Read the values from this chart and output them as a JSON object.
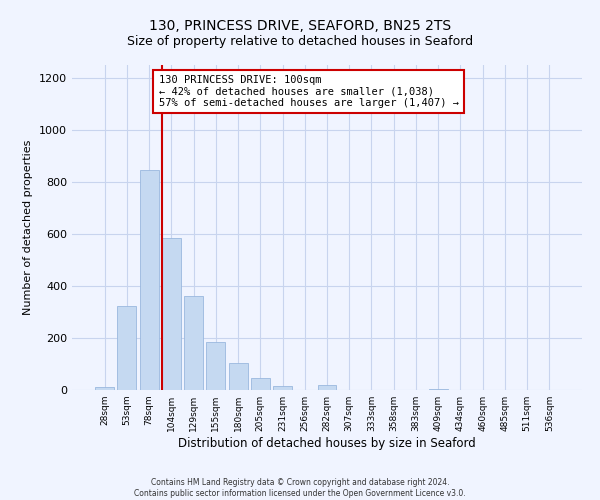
{
  "title": "130, PRINCESS DRIVE, SEAFORD, BN25 2TS",
  "subtitle": "Size of property relative to detached houses in Seaford",
  "xlabel": "Distribution of detached houses by size in Seaford",
  "ylabel": "Number of detached properties",
  "bin_labels": [
    "28sqm",
    "53sqm",
    "78sqm",
    "104sqm",
    "129sqm",
    "155sqm",
    "180sqm",
    "205sqm",
    "231sqm",
    "256sqm",
    "282sqm",
    "307sqm",
    "333sqm",
    "358sqm",
    "383sqm",
    "409sqm",
    "434sqm",
    "460sqm",
    "485sqm",
    "511sqm",
    "536sqm"
  ],
  "bar_values": [
    12,
    325,
    845,
    585,
    360,
    185,
    105,
    48,
    15,
    0,
    18,
    0,
    0,
    0,
    0,
    5,
    0,
    0,
    0,
    0,
    0
  ],
  "bar_color": "#c5d9f1",
  "bar_edge_color": "#9ab8de",
  "vline_color": "#cc0000",
  "annotation_text": "130 PRINCESS DRIVE: 100sqm\n← 42% of detached houses are smaller (1,038)\n57% of semi-detached houses are larger (1,407) →",
  "annotation_box_color": "#ffffff",
  "annotation_box_edge": "#cc0000",
  "ylim": [
    0,
    1250
  ],
  "yticks": [
    0,
    200,
    400,
    600,
    800,
    1000,
    1200
  ],
  "footer_line1": "Contains HM Land Registry data © Crown copyright and database right 2024.",
  "footer_line2": "Contains public sector information licensed under the Open Government Licence v3.0.",
  "bg_color": "#f0f4ff",
  "grid_color": "#c8d4ee",
  "title_fontsize": 10,
  "subtitle_fontsize": 9
}
